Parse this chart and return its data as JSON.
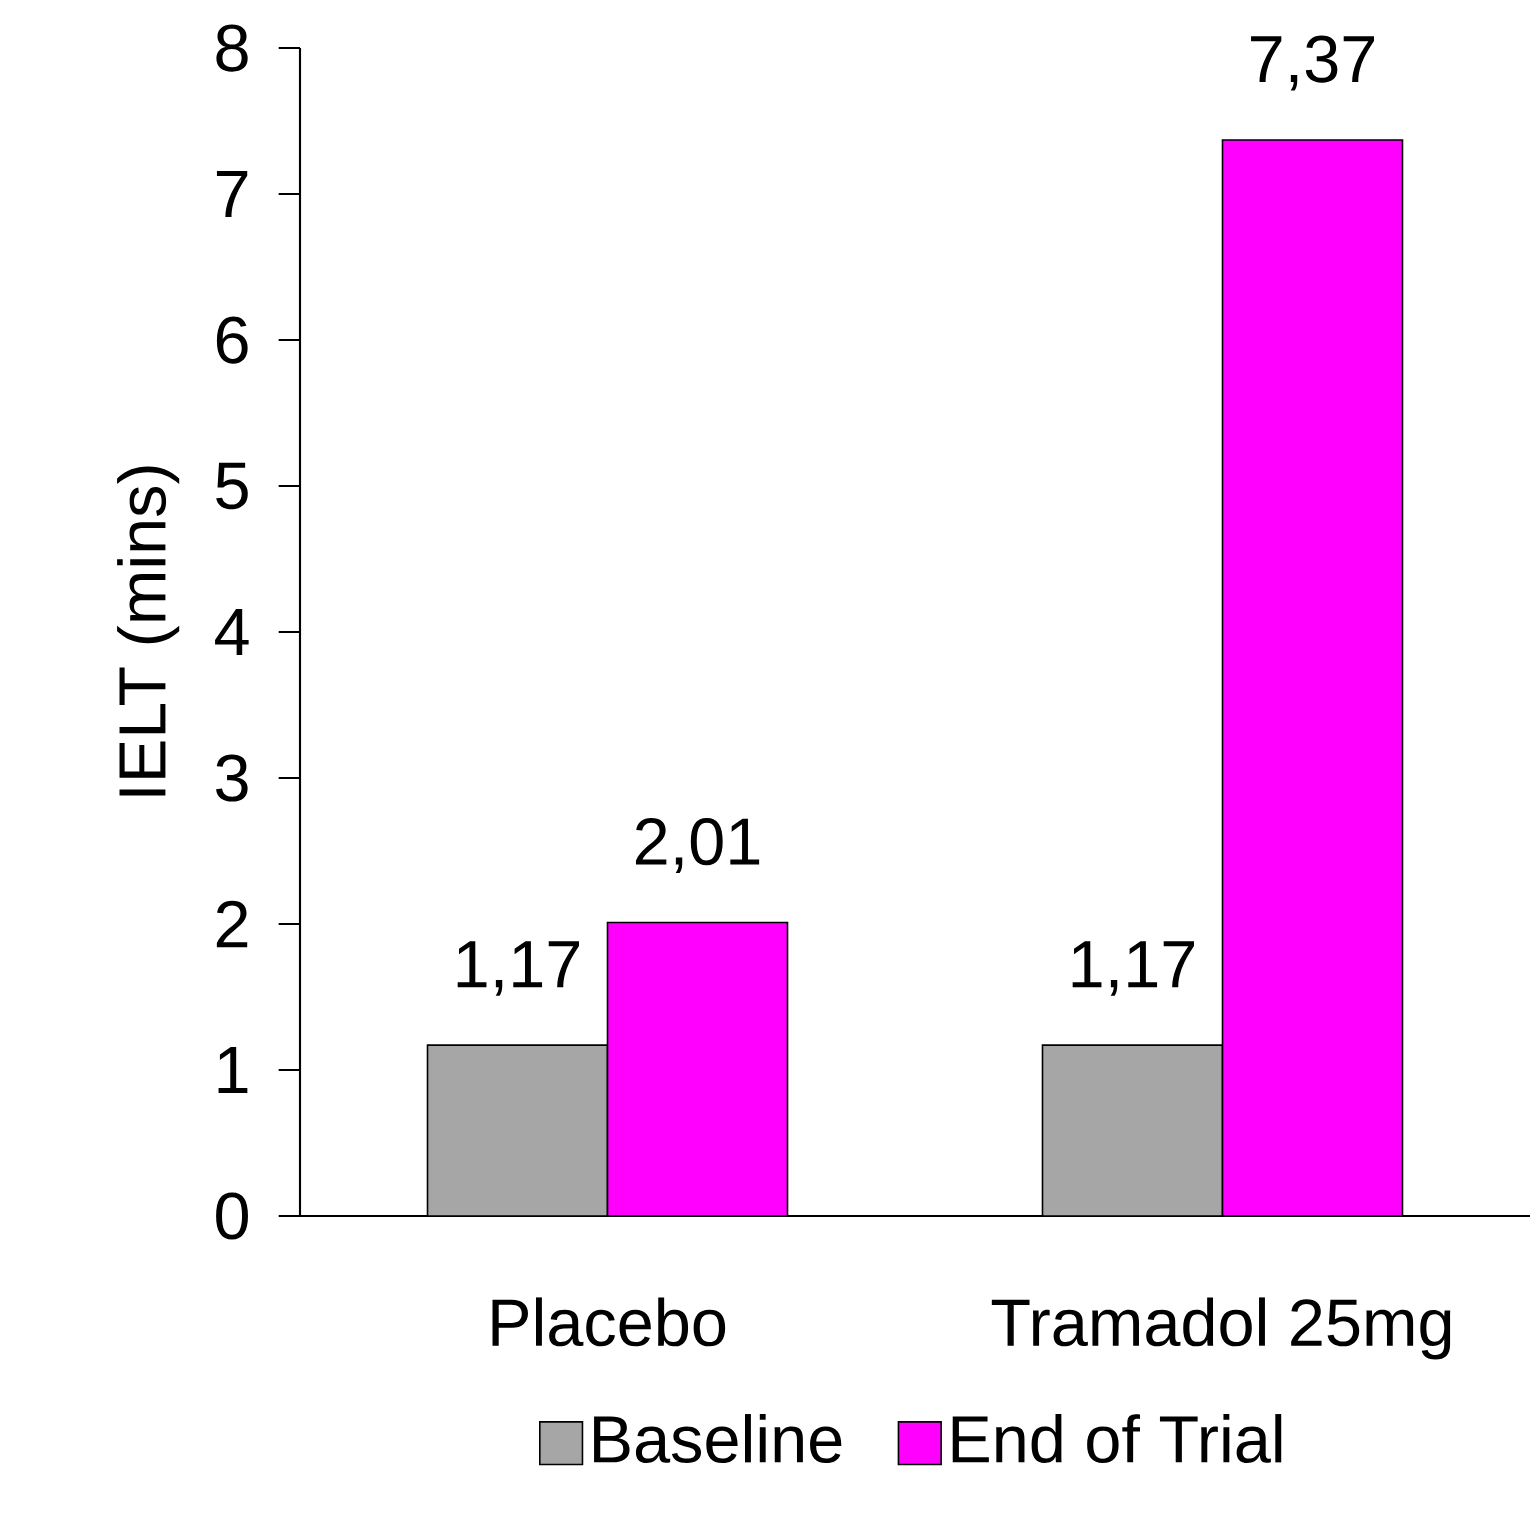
{
  "chart_data": {
    "type": "bar",
    "ylabel": "IELT (mins)",
    "categories": [
      "Placebo",
      "Tramadol 25mg"
    ],
    "series": [
      {
        "name": "Baseline",
        "color": "#a6a6a6",
        "values": [
          1.17,
          1.17
        ],
        "value_labels": [
          "1,17",
          "1,17"
        ]
      },
      {
        "name": "End of Trial",
        "color": "#ff00ff",
        "values": [
          2.01,
          7.37
        ],
        "value_labels": [
          "2,01",
          "7,37"
        ]
      }
    ],
    "ylim": [
      0,
      8
    ],
    "yticks": [
      0,
      1,
      2,
      3,
      4,
      5,
      6,
      7,
      8
    ],
    "grid": false,
    "legend": "bottom"
  }
}
